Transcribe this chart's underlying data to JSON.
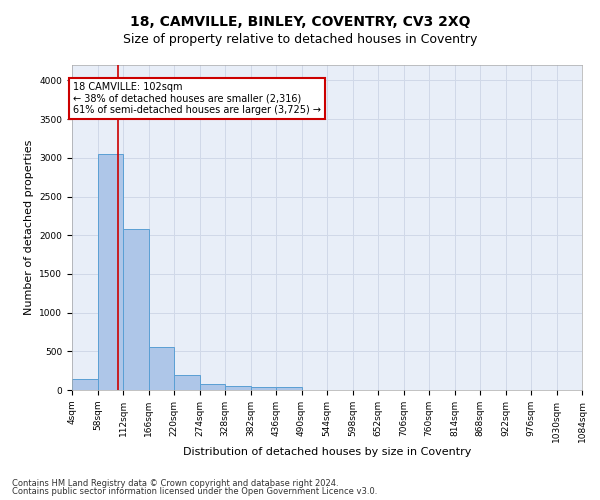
{
  "title": "18, CAMVILLE, BINLEY, COVENTRY, CV3 2XQ",
  "subtitle": "Size of property relative to detached houses in Coventry",
  "xlabel": "Distribution of detached houses by size in Coventry",
  "ylabel": "Number of detached properties",
  "footer_line1": "Contains HM Land Registry data © Crown copyright and database right 2024.",
  "footer_line2": "Contains public sector information licensed under the Open Government Licence v3.0.",
  "bar_color": "#aec6e8",
  "bar_edgecolor": "#5a9fd4",
  "gridcolor": "#d0d8e8",
  "bg_color": "#e8eef8",
  "annotation_text": "18 CAMVILLE: 102sqm\n← 38% of detached houses are smaller (2,316)\n61% of semi-detached houses are larger (3,725) →",
  "annotation_box_edgecolor": "#cc0000",
  "vline_x": 102,
  "vline_color": "#cc0000",
  "bin_edges": [
    4,
    58,
    112,
    166,
    220,
    274,
    328,
    382,
    436,
    490,
    544,
    598,
    652,
    706,
    760,
    814,
    868,
    922,
    976,
    1030,
    1084
  ],
  "bin_counts": [
    140,
    3050,
    2080,
    550,
    200,
    80,
    55,
    40,
    40,
    0,
    0,
    0,
    0,
    0,
    0,
    0,
    0,
    0,
    0,
    0
  ],
  "ylim": [
    0,
    4200
  ],
  "yticks": [
    0,
    500,
    1000,
    1500,
    2000,
    2500,
    3000,
    3500,
    4000
  ],
  "title_fontsize": 10,
  "subtitle_fontsize": 9,
  "label_fontsize": 8,
  "tick_fontsize": 6.5,
  "footer_fontsize": 6,
  "annot_fontsize": 7
}
